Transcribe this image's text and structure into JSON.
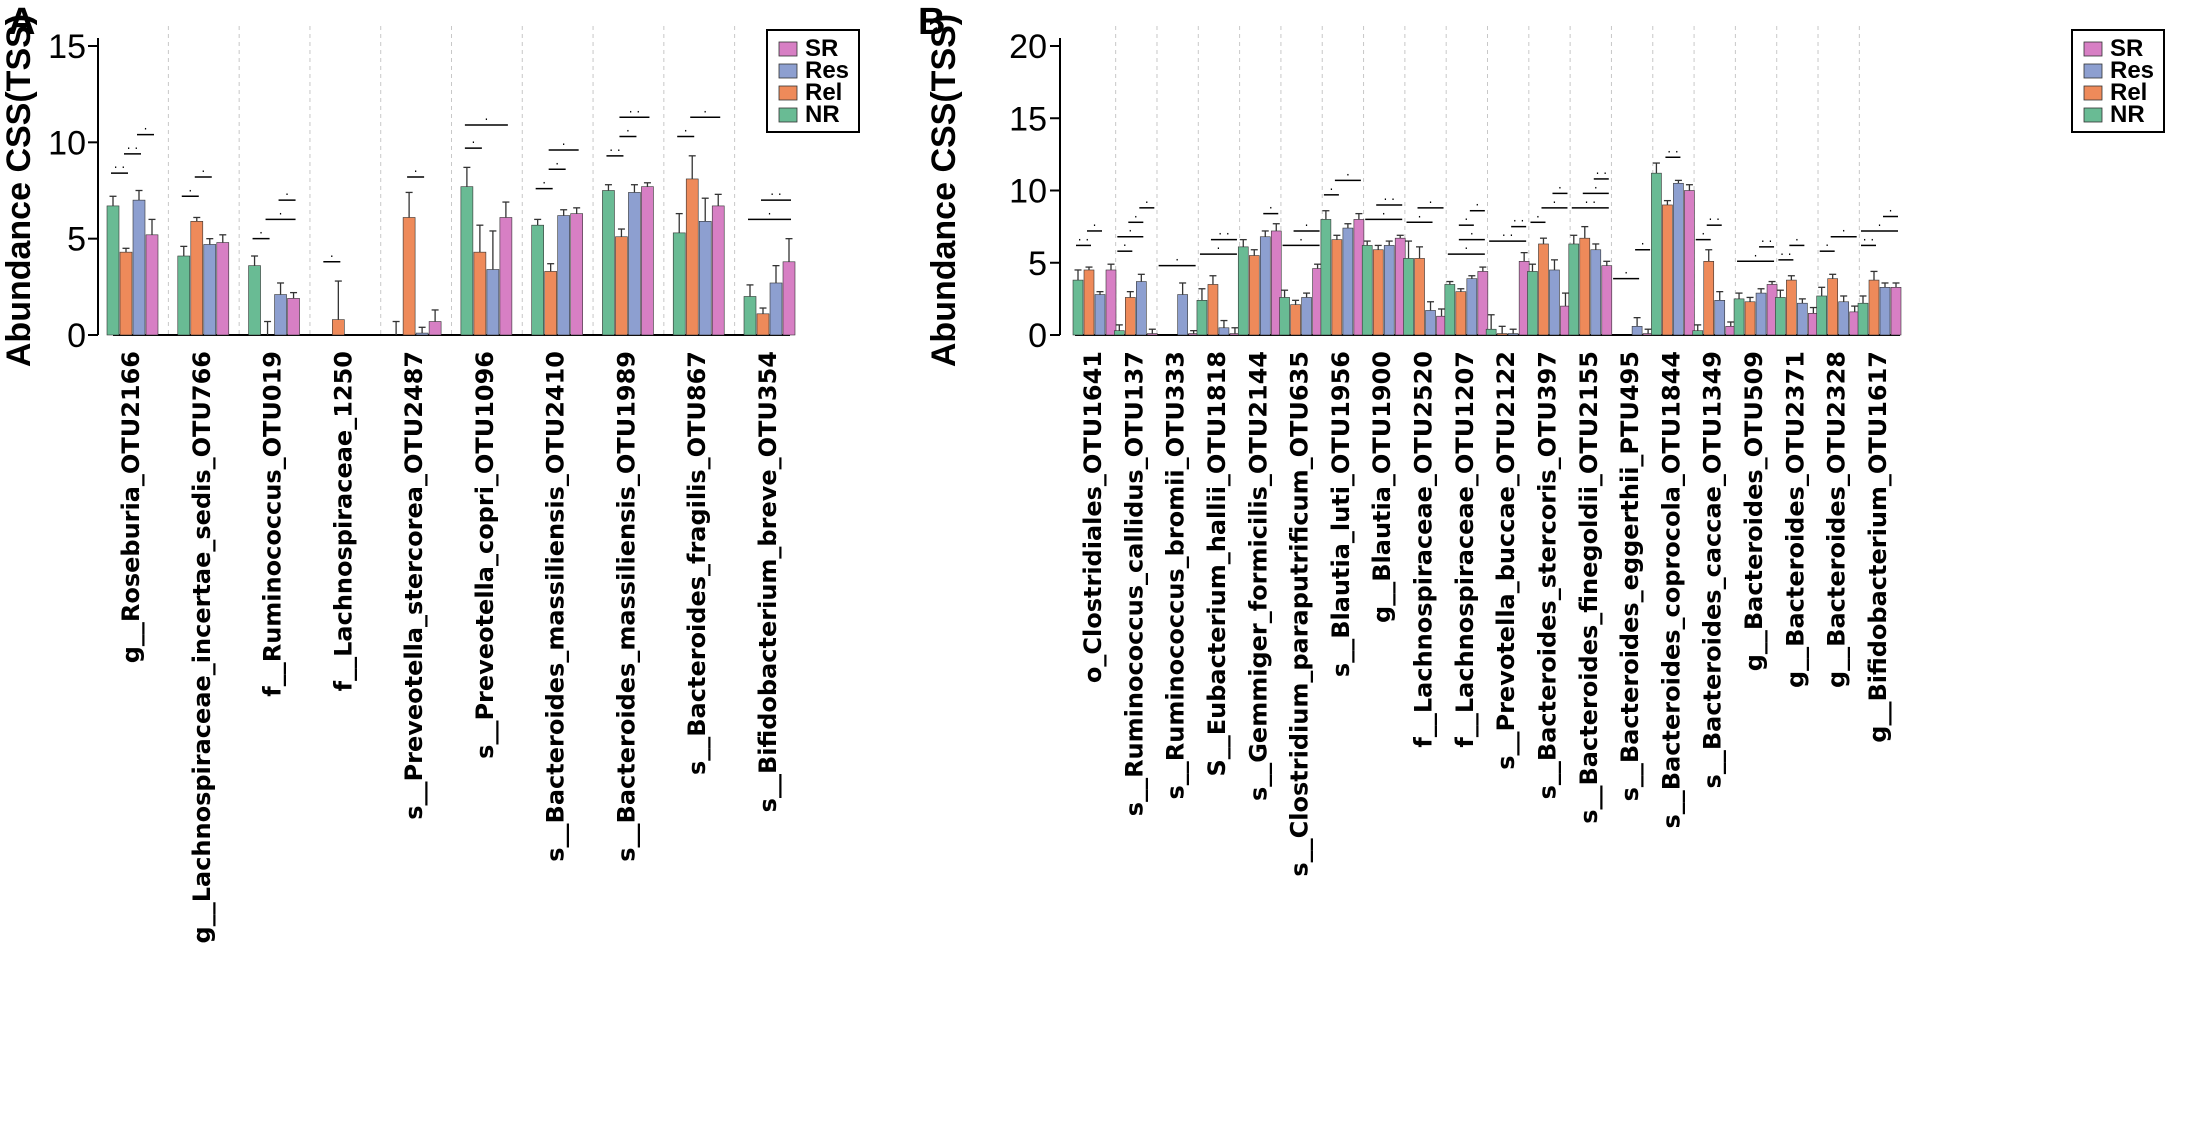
{
  "colors": {
    "SR": "#d77fc4",
    "Res": "#8d9fd0",
    "Rel": "#ee8a5a",
    "NR": "#69bb94"
  },
  "chart_data": [
    {
      "panel": "A",
      "type": "bar",
      "ylabel": "Abundance CSS(TSS)",
      "ylim": [
        0,
        15
      ],
      "yticks": [
        0,
        5,
        10,
        15
      ],
      "legend": {
        "position": "top-right",
        "entries": [
          "SR",
          "Res",
          "Rel",
          "NR"
        ]
      },
      "series_order": [
        "NR",
        "Rel",
        "Res",
        "SR"
      ],
      "categories": [
        "g__Roseburia_OTU2166",
        "g__Lachnospiraceae_incertae_sedis_OTU766",
        "f__Ruminococcus_OTU019",
        "f__Lachnospiraceae_1250",
        "s__Preveotella_stercorea_OTU2487",
        "s__Preveotella_copri_OTU1096",
        "s__Bacteroides_massiliensis_OTU2410",
        "s__Bacteroides_massiliensis_OTU1989",
        "s__Bacteroides_fragilis_OTU867",
        "s__Bifidobacterium_breve_OTU354"
      ],
      "series": [
        {
          "name": "NR",
          "values": [
            6.7,
            4.1,
            3.6,
            0.0,
            0.0,
            7.7,
            5.7,
            7.5,
            5.3,
            2.0
          ],
          "errors": [
            0.5,
            0.5,
            0.5,
            0.0,
            0.7,
            1.0,
            0.3,
            0.3,
            1.0,
            0.6
          ]
        },
        {
          "name": "Rel",
          "values": [
            4.3,
            5.9,
            0.0,
            0.8,
            6.1,
            4.3,
            3.3,
            5.1,
            8.1,
            1.1
          ],
          "errors": [
            0.2,
            0.2,
            0.7,
            2.0,
            1.3,
            1.4,
            0.4,
            0.4,
            1.2,
            0.3
          ]
        },
        {
          "name": "Res",
          "values": [
            7.0,
            4.7,
            2.1,
            0.0,
            0.1,
            3.4,
            6.2,
            7.4,
            5.9,
            2.7
          ],
          "errors": [
            0.5,
            0.3,
            0.6,
            0.0,
            0.3,
            2.0,
            0.3,
            0.4,
            1.2,
            0.9
          ]
        },
        {
          "name": "SR",
          "values": [
            5.2,
            4.8,
            1.9,
            0.0,
            0.7,
            6.1,
            6.3,
            7.7,
            6.7,
            3.8
          ],
          "errors": [
            0.8,
            0.4,
            0.3,
            0.0,
            0.6,
            0.8,
            0.3,
            0.2,
            0.6,
            1.2
          ]
        }
      ],
      "annotations": [
        {
          "category": 0,
          "brackets": [
            {
              "from": 0,
              "to": 1,
              "y": 8.4,
              "label": ". ."
            },
            {
              "from": 1,
              "to": 2,
              "y": 9.4,
              "label": ". ."
            },
            {
              "from": 2,
              "to": 3,
              "y": 10.4,
              "label": "."
            }
          ]
        },
        {
          "category": 1,
          "brackets": [
            {
              "from": 0,
              "to": 1,
              "y": 7.2,
              "label": "."
            },
            {
              "from": 1,
              "to": 2,
              "y": 8.2,
              "label": "."
            }
          ]
        },
        {
          "category": 2,
          "brackets": [
            {
              "from": 0,
              "to": 1,
              "y": 5.0,
              "label": "."
            },
            {
              "from": 1,
              "to": 3,
              "y": 6.0,
              "label": "."
            },
            {
              "from": 2,
              "to": 3,
              "y": 7.0,
              "label": "."
            }
          ]
        },
        {
          "category": 3,
          "brackets": [
            {
              "from": 0,
              "to": 1,
              "y": 3.8,
              "label": "."
            }
          ]
        },
        {
          "category": 4,
          "brackets": [
            {
              "from": 1,
              "to": 2,
              "y": 8.2,
              "label": "."
            }
          ]
        },
        {
          "category": 5,
          "brackets": [
            {
              "from": 0,
              "to": 1,
              "y": 9.7,
              "label": "."
            },
            {
              "from": 0,
              "to": 3,
              "y": 10.9,
              "label": "."
            }
          ]
        },
        {
          "category": 6,
          "brackets": [
            {
              "from": 0,
              "to": 1,
              "y": 7.6,
              "label": "."
            },
            {
              "from": 1,
              "to": 2,
              "y": 8.6,
              "label": "."
            },
            {
              "from": 1,
              "to": 3,
              "y": 9.6,
              "label": "."
            }
          ]
        },
        {
          "category": 7,
          "brackets": [
            {
              "from": 0,
              "to": 1,
              "y": 9.3,
              "label": ". ."
            },
            {
              "from": 1,
              "to": 2,
              "y": 10.3,
              "label": "."
            },
            {
              "from": 1,
              "to": 3,
              "y": 11.3,
              "label": ". ."
            }
          ]
        },
        {
          "category": 8,
          "brackets": [
            {
              "from": 0,
              "to": 1,
              "y": 10.3,
              "label": "."
            },
            {
              "from": 1,
              "to": 3,
              "y": 11.3,
              "label": "."
            }
          ]
        },
        {
          "category": 9,
          "brackets": [
            {
              "from": 0,
              "to": 3,
              "y": 6.0,
              "label": "."
            },
            {
              "from": 1,
              "to": 3,
              "y": 7.0,
              "label": ". ."
            }
          ]
        }
      ]
    },
    {
      "panel": "B",
      "type": "bar",
      "ylabel": "Abundance CSS(TSS)",
      "ylim": [
        0,
        20
      ],
      "yticks": [
        0,
        5,
        10,
        15,
        20
      ],
      "legend": {
        "position": "top-right",
        "entries": [
          "SR",
          "Res",
          "Rel",
          "NR"
        ]
      },
      "series_order": [
        "NR",
        "Rel",
        "Res",
        "SR"
      ],
      "categories": [
        "o_Clostridiales_OTU1641",
        "s__Ruminococcus_callidus_OTU137",
        "s__Ruminococcus_bromii_OTU333",
        "S__Eubacterium_hallii_OTU1818",
        "s__Gemmiger_formicilis_OTU2144",
        "s__Clostridium_paraputrificum_OTU635",
        "s__Blautia_luti_OTU1956",
        "g__Blautia_OTU1900",
        "f__Lachnospiraceae_OTU2520",
        "f__Lachnospiraceae_OTU1207",
        "s__Prevotella_buccae_OTU2122",
        "s__Bacteroides_stercoris_OTU397",
        "s__Bacteroides_finegoldii_OTU2155",
        "s__Bacteroides_eggerthii_PTU495",
        "s__Bacteroides_coprocola_OTU1844",
        "s__Bacteroides_caccae_OTU1349",
        "g__Bacteroides_OTU509",
        "g__Bacteroides_OTU2371",
        "g__Bacteroides_OTU2328",
        "g__Bifidobacterium_OTU1617"
      ],
      "series": [
        {
          "name": "NR",
          "values": [
            3.8,
            0.3,
            0.0,
            2.4,
            6.1,
            2.6,
            8.0,
            6.2,
            5.3,
            3.5,
            0.4,
            4.4,
            6.3,
            0.0,
            11.2,
            0.3,
            2.5,
            2.6,
            2.7,
            2.2
          ],
          "errors": [
            0.7,
            0.4,
            0.0,
            0.8,
            0.5,
            0.5,
            0.6,
            0.3,
            1.2,
            0.2,
            1.0,
            0.5,
            0.6,
            0.0,
            0.7,
            0.4,
            0.4,
            0.5,
            0.6,
            0.5
          ]
        },
        {
          "name": "Rel",
          "values": [
            4.5,
            2.6,
            0.0,
            3.5,
            5.5,
            2.1,
            6.6,
            5.9,
            5.3,
            3.0,
            0.1,
            6.3,
            6.7,
            0.0,
            9.0,
            5.1,
            2.3,
            3.8,
            3.9,
            3.8
          ],
          "errors": [
            0.2,
            0.4,
            0.0,
            0.6,
            0.4,
            0.3,
            0.3,
            0.3,
            0.8,
            0.2,
            0.5,
            0.4,
            0.8,
            0.0,
            0.3,
            0.8,
            0.3,
            0.3,
            0.3,
            0.6
          ]
        },
        {
          "name": "Res",
          "values": [
            2.8,
            3.7,
            2.8,
            0.5,
            6.8,
            2.6,
            7.4,
            6.2,
            1.7,
            3.9,
            0.1,
            4.5,
            5.9,
            0.6,
            10.5,
            2.4,
            2.9,
            2.2,
            2.3,
            3.3
          ],
          "errors": [
            0.2,
            0.5,
            0.8,
            0.5,
            0.4,
            0.3,
            0.3,
            0.3,
            0.6,
            0.2,
            0.3,
            0.7,
            0.4,
            0.6,
            0.2,
            0.6,
            0.3,
            0.3,
            0.4,
            0.3
          ]
        },
        {
          "name": "SR",
          "values": [
            4.5,
            0.1,
            0.1,
            0.1,
            7.2,
            4.6,
            8.0,
            6.7,
            1.3,
            4.4,
            5.1,
            2.0,
            4.8,
            0.1,
            10.0,
            0.6,
            3.5,
            1.5,
            1.6,
            3.3
          ],
          "errors": [
            0.4,
            0.3,
            0.2,
            0.4,
            0.5,
            0.3,
            0.4,
            0.2,
            0.5,
            0.3,
            0.6,
            0.9,
            0.3,
            0.3,
            0.4,
            0.3,
            0.2,
            0.4,
            0.4,
            0.3
          ]
        }
      ],
      "annotations": [
        {
          "category": 0,
          "brackets": [
            {
              "from": 0,
              "to": 1,
              "y": 6.2,
              "label": ". ."
            },
            {
              "from": 1,
              "to": 2,
              "y": 7.2,
              "label": "."
            }
          ]
        },
        {
          "category": 1,
          "brackets": [
            {
              "from": 0,
              "to": 1,
              "y": 5.8,
              "label": "."
            },
            {
              "from": 0,
              "to": 2,
              "y": 6.8,
              "label": "."
            },
            {
              "from": 1,
              "to": 2,
              "y": 7.8,
              "label": "."
            },
            {
              "from": 2,
              "to": 3,
              "y": 8.8,
              "label": "."
            }
          ]
        },
        {
          "category": 2,
          "brackets": [
            {
              "from": 0,
              "to": 3,
              "y": 4.8,
              "label": "."
            }
          ]
        },
        {
          "category": 3,
          "brackets": [
            {
              "from": 0,
              "to": 3,
              "y": 5.6,
              "label": "."
            },
            {
              "from": 1,
              "to": 3,
              "y": 6.6,
              "label": ". ."
            }
          ]
        },
        {
          "category": 4,
          "brackets": [
            {
              "from": 2,
              "to": 3,
              "y": 8.4,
              "label": "."
            }
          ]
        },
        {
          "category": 5,
          "brackets": [
            {
              "from": 0,
              "to": 3,
              "y": 6.2,
              "label": "."
            },
            {
              "from": 1,
              "to": 3,
              "y": 7.2,
              "label": "."
            }
          ]
        },
        {
          "category": 6,
          "brackets": [
            {
              "from": 0,
              "to": 1,
              "y": 9.7,
              "label": "."
            },
            {
              "from": 1,
              "to": 3,
              "y": 10.7,
              "label": "."
            }
          ]
        },
        {
          "category": 7,
          "brackets": [
            {
              "from": 0,
              "to": 3,
              "y": 8.0,
              "label": "."
            },
            {
              "from": 1,
              "to": 3,
              "y": 9.0,
              "label": ". ."
            }
          ]
        },
        {
          "category": 8,
          "brackets": [
            {
              "from": 0,
              "to": 2,
              "y": 7.8,
              "label": "."
            },
            {
              "from": 1,
              "to": 3,
              "y": 8.8,
              "label": "."
            }
          ]
        },
        {
          "category": 9,
          "brackets": [
            {
              "from": 0,
              "to": 3,
              "y": 5.6,
              "label": "."
            },
            {
              "from": 1,
              "to": 3,
              "y": 6.6,
              "label": "."
            },
            {
              "from": 1,
              "to": 2,
              "y": 7.6,
              "label": "."
            },
            {
              "from": 2,
              "to": 3,
              "y": 8.6,
              "label": "."
            }
          ]
        },
        {
          "category": 10,
          "brackets": [
            {
              "from": 0,
              "to": 3,
              "y": 6.5,
              "label": ". ."
            },
            {
              "from": 2,
              "to": 3,
              "y": 7.5,
              "label": ". ."
            }
          ]
        },
        {
          "category": 11,
          "brackets": [
            {
              "from": 0,
              "to": 1,
              "y": 7.8,
              "label": "."
            },
            {
              "from": 1,
              "to": 3,
              "y": 8.8,
              "label": "."
            },
            {
              "from": 2,
              "to": 3,
              "y": 9.8,
              "label": "."
            }
          ]
        },
        {
          "category": 12,
          "brackets": [
            {
              "from": 0,
              "to": 3,
              "y": 8.8,
              "label": ". ."
            },
            {
              "from": 1,
              "to": 3,
              "y": 9.8,
              "label": "."
            },
            {
              "from": 2,
              "to": 3,
              "y": 10.8,
              "label": ". ."
            }
          ]
        },
        {
          "category": 13,
          "brackets": [
            {
              "from": 0,
              "to": 2,
              "y": 3.9,
              "label": "."
            },
            {
              "from": 2,
              "to": 3,
              "y": 5.9,
              "label": "."
            }
          ]
        },
        {
          "category": 14,
          "brackets": [
            {
              "from": 1,
              "to": 2,
              "y": 12.3,
              "label": ". ."
            }
          ]
        },
        {
          "category": 15,
          "brackets": [
            {
              "from": 0,
              "to": 1,
              "y": 6.6,
              "label": "."
            },
            {
              "from": 1,
              "to": 2,
              "y": 7.6,
              "label": ". ."
            }
          ]
        },
        {
          "category": 16,
          "brackets": [
            {
              "from": 0,
              "to": 3,
              "y": 5.1,
              "label": "."
            },
            {
              "from": 2,
              "to": 3,
              "y": 6.1,
              "label": ". ."
            }
          ]
        },
        {
          "category": 17,
          "brackets": [
            {
              "from": 0,
              "to": 1,
              "y": 5.2,
              "label": ". ."
            },
            {
              "from": 1,
              "to": 2,
              "y": 6.2,
              "label": "."
            }
          ]
        },
        {
          "category": 18,
          "brackets": [
            {
              "from": 0,
              "to": 1,
              "y": 5.8,
              "label": "."
            },
            {
              "from": 1,
              "to": 3,
              "y": 6.8,
              "label": "."
            }
          ]
        },
        {
          "category": 19,
          "brackets": [
            {
              "from": 0,
              "to": 1,
              "y": 6.2,
              "label": ". ."
            },
            {
              "from": 0,
              "to": 3,
              "y": 7.2,
              "label": "."
            },
            {
              "from": 2,
              "to": 3,
              "y": 8.2,
              "label": "."
            }
          ]
        }
      ]
    }
  ]
}
